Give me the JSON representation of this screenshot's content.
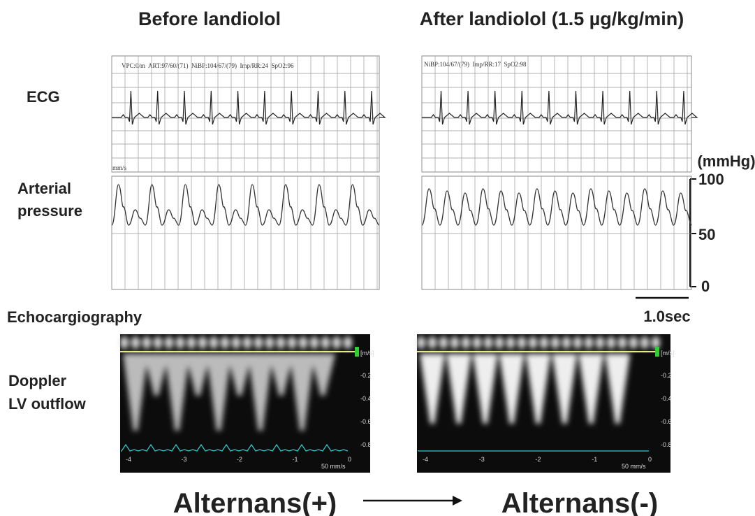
{
  "columns": [
    "Before landiolol",
    "After landiolol (1.5 µg/kg/min)"
  ],
  "row_labels": {
    "ecg": "ECG",
    "arterial": [
      "Arterial",
      "pressure"
    ],
    "doppler": [
      "Doppler",
      "LV outflow"
    ]
  },
  "section": "Echocargiography",
  "monitor": {
    "before": "VPC:0/m  ART:97/60/(71)  NiBP:104/67/(79)  Imp/RR:24  SpO2:96",
    "after": "NiBP:104/67/(79)  Imp/RR:17  SpO2:98",
    "speed": "mm/s"
  },
  "pressure_scale": {
    "unit": "(mmHg)",
    "labels": [
      "100",
      "50",
      "0"
    ],
    "time": "1.0sec"
  },
  "doppler_axis": {
    "unit": "[m/s]",
    "y_labels": [
      "-0.2",
      "-0.4",
      "-0.6",
      "-0.8"
    ],
    "x_labels": [
      "-4",
      "-3",
      "-2",
      "-1",
      "0"
    ],
    "speed": "50 mm/s"
  },
  "results": [
    "Alternans(+)",
    "Alternans(-)"
  ]
}
